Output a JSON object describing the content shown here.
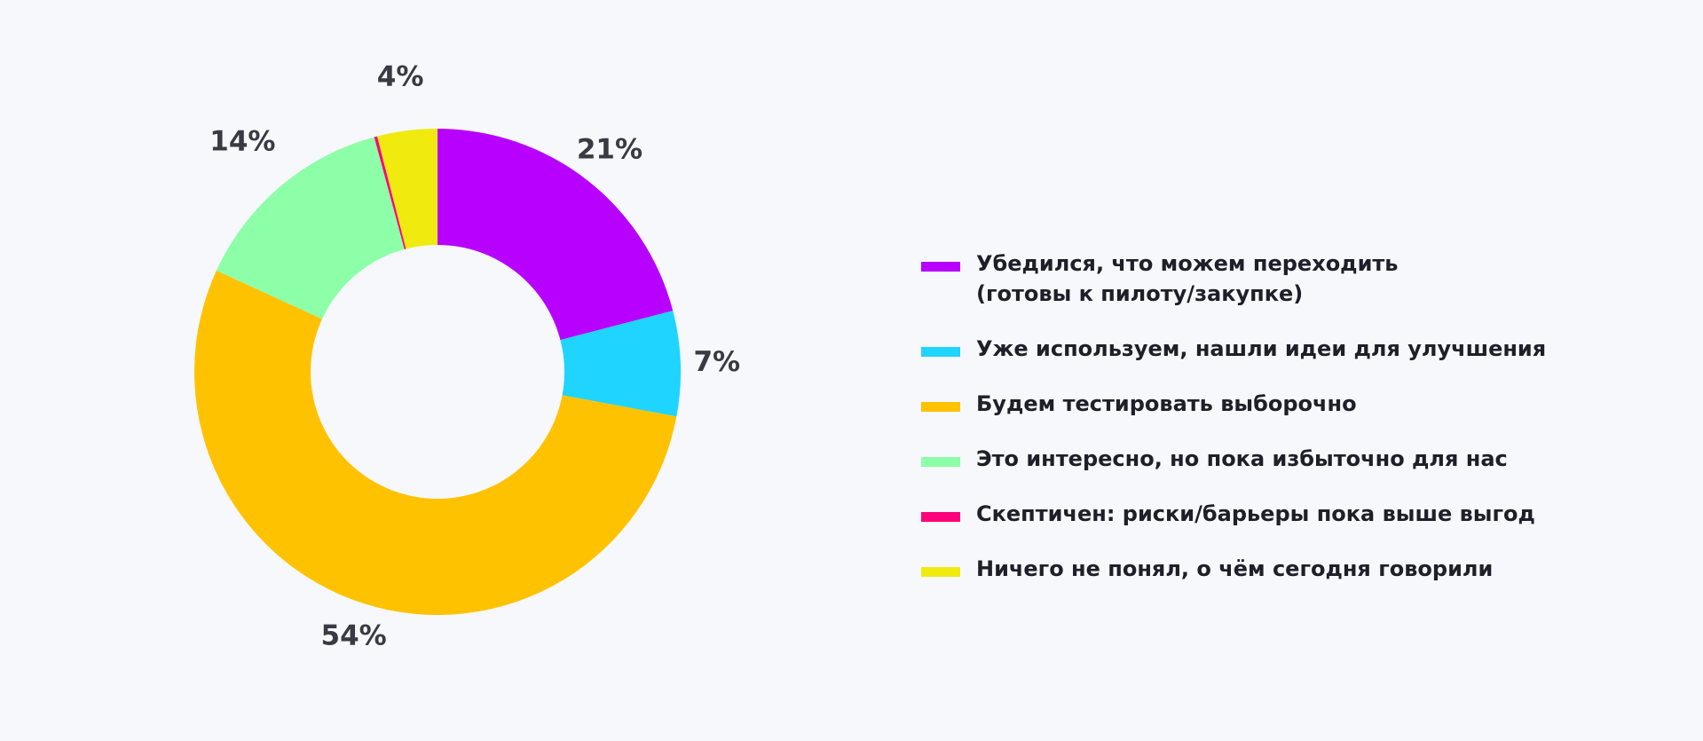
{
  "chart_data": {
    "type": "pie",
    "donut": true,
    "title": "",
    "series": [
      {
        "name": "Убедился, что можем переходить\n(готовы к пилоту/закупке)",
        "value": 21,
        "label": "21%",
        "color": "#b800ff"
      },
      {
        "name": "Уже используем, нашли идеи для улучшения",
        "value": 7,
        "label": "7%",
        "color": "#1fd5ff"
      },
      {
        "name": "Будем тестировать выборочно",
        "value": 54,
        "label": "54%",
        "color": "#ffc200"
      },
      {
        "name": "Это интересно, но пока избыточно для нас",
        "value": 14,
        "label": "14%",
        "color": "#8dffa8"
      },
      {
        "name": "Скептичен: риски/барьеры пока выше выгод",
        "value": 0.2,
        "label": "",
        "color": "#ff007a"
      },
      {
        "name": "Ничего не понял, о чём сегодня говорили",
        "value": 4,
        "label": "4%",
        "color": "#f0ea0f"
      }
    ],
    "legend_position": "right"
  }
}
